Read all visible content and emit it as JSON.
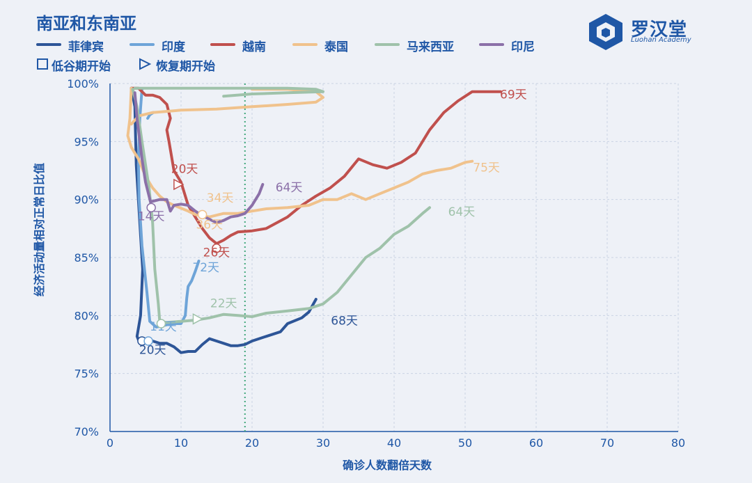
{
  "title": "南亚和东南亚",
  "logo": {
    "text": "罗汉堂",
    "subtext": "Luohan Academy"
  },
  "marker_legend": {
    "trough": "低谷期开始",
    "recovery": "恢复期开始"
  },
  "chart_data": {
    "type": "line",
    "xlabel": "确诊人数翻倍天数",
    "ylabel": "经济活动量相对正常日比值",
    "xlim": [
      0,
      80
    ],
    "ylim": [
      70,
      100
    ],
    "x_ticks": [
      "0",
      "10",
      "20",
      "30",
      "40",
      "50",
      "60",
      "70",
      "80"
    ],
    "y_ticks": [
      "70%",
      "75%",
      "80%",
      "85%",
      "90%",
      "95%",
      "100%"
    ],
    "grid": true,
    "legend_position": "top-left",
    "vline": {
      "x": 19,
      "color": "#3fa77a"
    },
    "series": [
      {
        "name": "菲律宾",
        "color": "#2d5597",
        "points": [
          [
            3,
            99.6
          ],
          [
            3.5,
            98
          ],
          [
            3.7,
            93
          ],
          [
            4.2,
            88
          ],
          [
            4.6,
            84
          ],
          [
            4.3,
            80
          ],
          [
            3.8,
            78.2
          ],
          [
            4.2,
            77.6
          ],
          [
            5,
            78
          ],
          [
            6,
            77.8
          ],
          [
            7,
            77.6
          ],
          [
            8,
            77.6
          ],
          [
            9,
            77.3
          ],
          [
            10,
            76.8
          ],
          [
            11,
            76.9
          ],
          [
            12,
            76.9
          ],
          [
            13,
            77.5
          ],
          [
            14,
            78
          ],
          [
            15,
            77.8
          ],
          [
            16,
            77.6
          ],
          [
            17,
            77.4
          ],
          [
            18,
            77.4
          ],
          [
            19,
            77.5
          ],
          [
            20,
            77.8
          ],
          [
            22,
            78.2
          ],
          [
            24,
            78.6
          ],
          [
            25,
            79.3
          ],
          [
            27,
            79.8
          ],
          [
            28,
            80.3
          ],
          [
            29,
            81.4
          ]
        ],
        "trough": [
          4.5,
          77.8
        ],
        "recovery": null,
        "label": "20天",
        "label_at": [
          6,
          76.7
        ],
        "end_label": "68天",
        "end_label_at": [
          33,
          79.2
        ]
      },
      {
        "name": "印度",
        "color": "#6ea4d8",
        "points": [
          [
            4.5,
            99.5
          ],
          [
            4.2,
            97
          ],
          [
            4,
            93
          ],
          [
            4.1,
            90
          ],
          [
            4.5,
            86
          ],
          [
            5.2,
            82
          ],
          [
            5.6,
            79.5
          ],
          [
            6.5,
            79
          ],
          [
            8,
            79.2
          ],
          [
            9,
            79.3
          ],
          [
            10,
            79.3
          ],
          [
            10.6,
            80
          ],
          [
            10.8,
            81.5
          ],
          [
            11,
            82.5
          ],
          [
            11.5,
            83
          ],
          [
            12,
            83.8
          ],
          [
            12.5,
            84.7
          ]
        ],
        "trough": [
          5.4,
          77.8
        ],
        "recovery": null,
        "label": "11天",
        "label_at": [
          7.5,
          78.7
        ],
        "end_label": "72天",
        "end_label_at": [
          13.5,
          83.8
        ],
        "extra_points": [
          [
            5.3,
            97
          ],
          [
            5.6,
            97.3
          ],
          [
            6.1,
            97.5
          ]
        ]
      },
      {
        "name": "越南",
        "color": "#c0504d",
        "points": [
          [
            3,
            99.6
          ],
          [
            4,
            99.6
          ],
          [
            5,
            99
          ],
          [
            6,
            99
          ],
          [
            7,
            98.8
          ],
          [
            8,
            98.2
          ],
          [
            8.5,
            97
          ],
          [
            8,
            96
          ],
          [
            8.3,
            95
          ],
          [
            9,
            92.5
          ],
          [
            10,
            91.5
          ],
          [
            10.5,
            90.5
          ],
          [
            11,
            89.5
          ],
          [
            12,
            88.5
          ],
          [
            13,
            87.5
          ],
          [
            14,
            86.7
          ],
          [
            15,
            86.2
          ],
          [
            16,
            86.5
          ],
          [
            17,
            86.9
          ],
          [
            18,
            87.2
          ],
          [
            20,
            87.3
          ],
          [
            22,
            87.5
          ],
          [
            25,
            88.5
          ],
          [
            27,
            89.5
          ],
          [
            29,
            90.3
          ],
          [
            31,
            91
          ],
          [
            33,
            92
          ],
          [
            35,
            93.5
          ],
          [
            37,
            93
          ],
          [
            39,
            92.7
          ],
          [
            41,
            93.2
          ],
          [
            43,
            94
          ],
          [
            45,
            96
          ],
          [
            47,
            97.5
          ],
          [
            49,
            98.5
          ],
          [
            51,
            99.3
          ],
          [
            52,
            99.3
          ],
          [
            55,
            99.3
          ]
        ],
        "trough": [
          15,
          85.8
        ],
        "recovery": [
          9.5,
          91.3
        ],
        "label": "20天",
        "label_at": [
          10.5,
          92.3
        ],
        "end_label": "69天",
        "end_label_at": [
          56.8,
          98.7
        ],
        "label2": "26天",
        "label2_at": [
          15,
          85.1
        ]
      },
      {
        "name": "泰国",
        "color": "#f0c28c",
        "points": [
          [
            3,
            99.6
          ],
          [
            2.8,
            97
          ],
          [
            2.5,
            95.5
          ],
          [
            3,
            94.5
          ],
          [
            4,
            93.5
          ],
          [
            5,
            92
          ],
          [
            6,
            91
          ],
          [
            7,
            90.3
          ],
          [
            8,
            89.8
          ],
          [
            9,
            89.5
          ],
          [
            11,
            89
          ],
          [
            12,
            88.7
          ],
          [
            14,
            88.5
          ],
          [
            16,
            88.8
          ],
          [
            18,
            88.8
          ],
          [
            20,
            89
          ],
          [
            22,
            89.2
          ],
          [
            25,
            89.3
          ],
          [
            28,
            89.5
          ],
          [
            30,
            90
          ],
          [
            32,
            90
          ],
          [
            34,
            90.5
          ],
          [
            36,
            90
          ],
          [
            38,
            90.5
          ],
          [
            40,
            91
          ],
          [
            42,
            91.5
          ],
          [
            44,
            92.2
          ],
          [
            46,
            92.5
          ],
          [
            48,
            92.7
          ],
          [
            50,
            93.2
          ],
          [
            51,
            93.3
          ]
        ],
        "trough": [
          13,
          88.7
        ],
        "recovery": null,
        "label": "36天",
        "label_at": [
          14,
          87.5
        ],
        "end_label": "75天",
        "end_label_at": [
          53,
          92.4
        ],
        "label2": "34天",
        "label2_at": [
          15.5,
          89.8
        ],
        "extra_points": [
          [
            3,
            96.5
          ],
          [
            4,
            97.2
          ],
          [
            6,
            97.5
          ],
          [
            10,
            97.7
          ],
          [
            15,
            97.8
          ],
          [
            20,
            98
          ],
          [
            25,
            98.2
          ],
          [
            29,
            98.4
          ],
          [
            30,
            98.8
          ],
          [
            29,
            99.3
          ],
          [
            25,
            99.5
          ],
          [
            20,
            99.5
          ]
        ]
      },
      {
        "name": "马来西亚",
        "color": "#9fc2aa",
        "points": [
          [
            3.2,
            99.5
          ],
          [
            3.8,
            98
          ],
          [
            4.5,
            95
          ],
          [
            5.5,
            91
          ],
          [
            6,
            88
          ],
          [
            6.3,
            84
          ],
          [
            6.8,
            81
          ],
          [
            7,
            79.5
          ],
          [
            8,
            79.4
          ],
          [
            10,
            79.5
          ],
          [
            12,
            79.6
          ],
          [
            14,
            79.8
          ],
          [
            16,
            80.1
          ],
          [
            18,
            80
          ],
          [
            20,
            79.9
          ],
          [
            22,
            80.2
          ],
          [
            25,
            80.4
          ],
          [
            28,
            80.6
          ],
          [
            30,
            81
          ],
          [
            32,
            82
          ],
          [
            34,
            83.5
          ],
          [
            36,
            85
          ],
          [
            38,
            85.8
          ],
          [
            40,
            87
          ],
          [
            42,
            87.7
          ],
          [
            44,
            88.8
          ],
          [
            45,
            89.3
          ]
        ],
        "trough": [
          7.2,
          79.3
        ],
        "recovery": [
          12.2,
          79.7
        ],
        "label": "22天",
        "label_at": [
          16,
          80.7
        ],
        "end_label": "64天",
        "end_label_at": [
          49.5,
          88.6
        ],
        "extra_points": [
          [
            3.5,
            99.6
          ],
          [
            10,
            99.6
          ],
          [
            20,
            99.6
          ],
          [
            25,
            99.6
          ],
          [
            29,
            99.5
          ],
          [
            30,
            99.3
          ],
          [
            25,
            99.2
          ],
          [
            20,
            99.1
          ],
          [
            16,
            98.9
          ]
        ]
      },
      {
        "name": "印尼",
        "color": "#8b70a8",
        "points": [
          [
            3.5,
            99.2
          ],
          [
            3.8,
            97
          ],
          [
            4.5,
            93.5
          ],
          [
            5,
            91.5
          ],
          [
            5.7,
            89.8
          ],
          [
            7,
            90
          ],
          [
            8,
            90
          ],
          [
            8.5,
            89
          ],
          [
            9,
            89.5
          ],
          [
            10,
            89.6
          ],
          [
            11,
            89.5
          ],
          [
            12,
            89
          ],
          [
            13,
            88.6
          ],
          [
            14,
            88.3
          ],
          [
            15,
            88
          ],
          [
            16,
            88.2
          ],
          [
            17,
            88.5
          ],
          [
            18,
            88.6
          ],
          [
            19,
            88.8
          ],
          [
            20,
            89.5
          ],
          [
            21,
            90.5
          ],
          [
            21.5,
            91.3
          ]
        ],
        "trough": [
          5.8,
          89.3
        ],
        "recovery": null,
        "label": "14天",
        "label_at": [
          5.8,
          88.2
        ],
        "end_label": "64天",
        "end_label_at": [
          25.2,
          90.7
        ]
      }
    ]
  }
}
